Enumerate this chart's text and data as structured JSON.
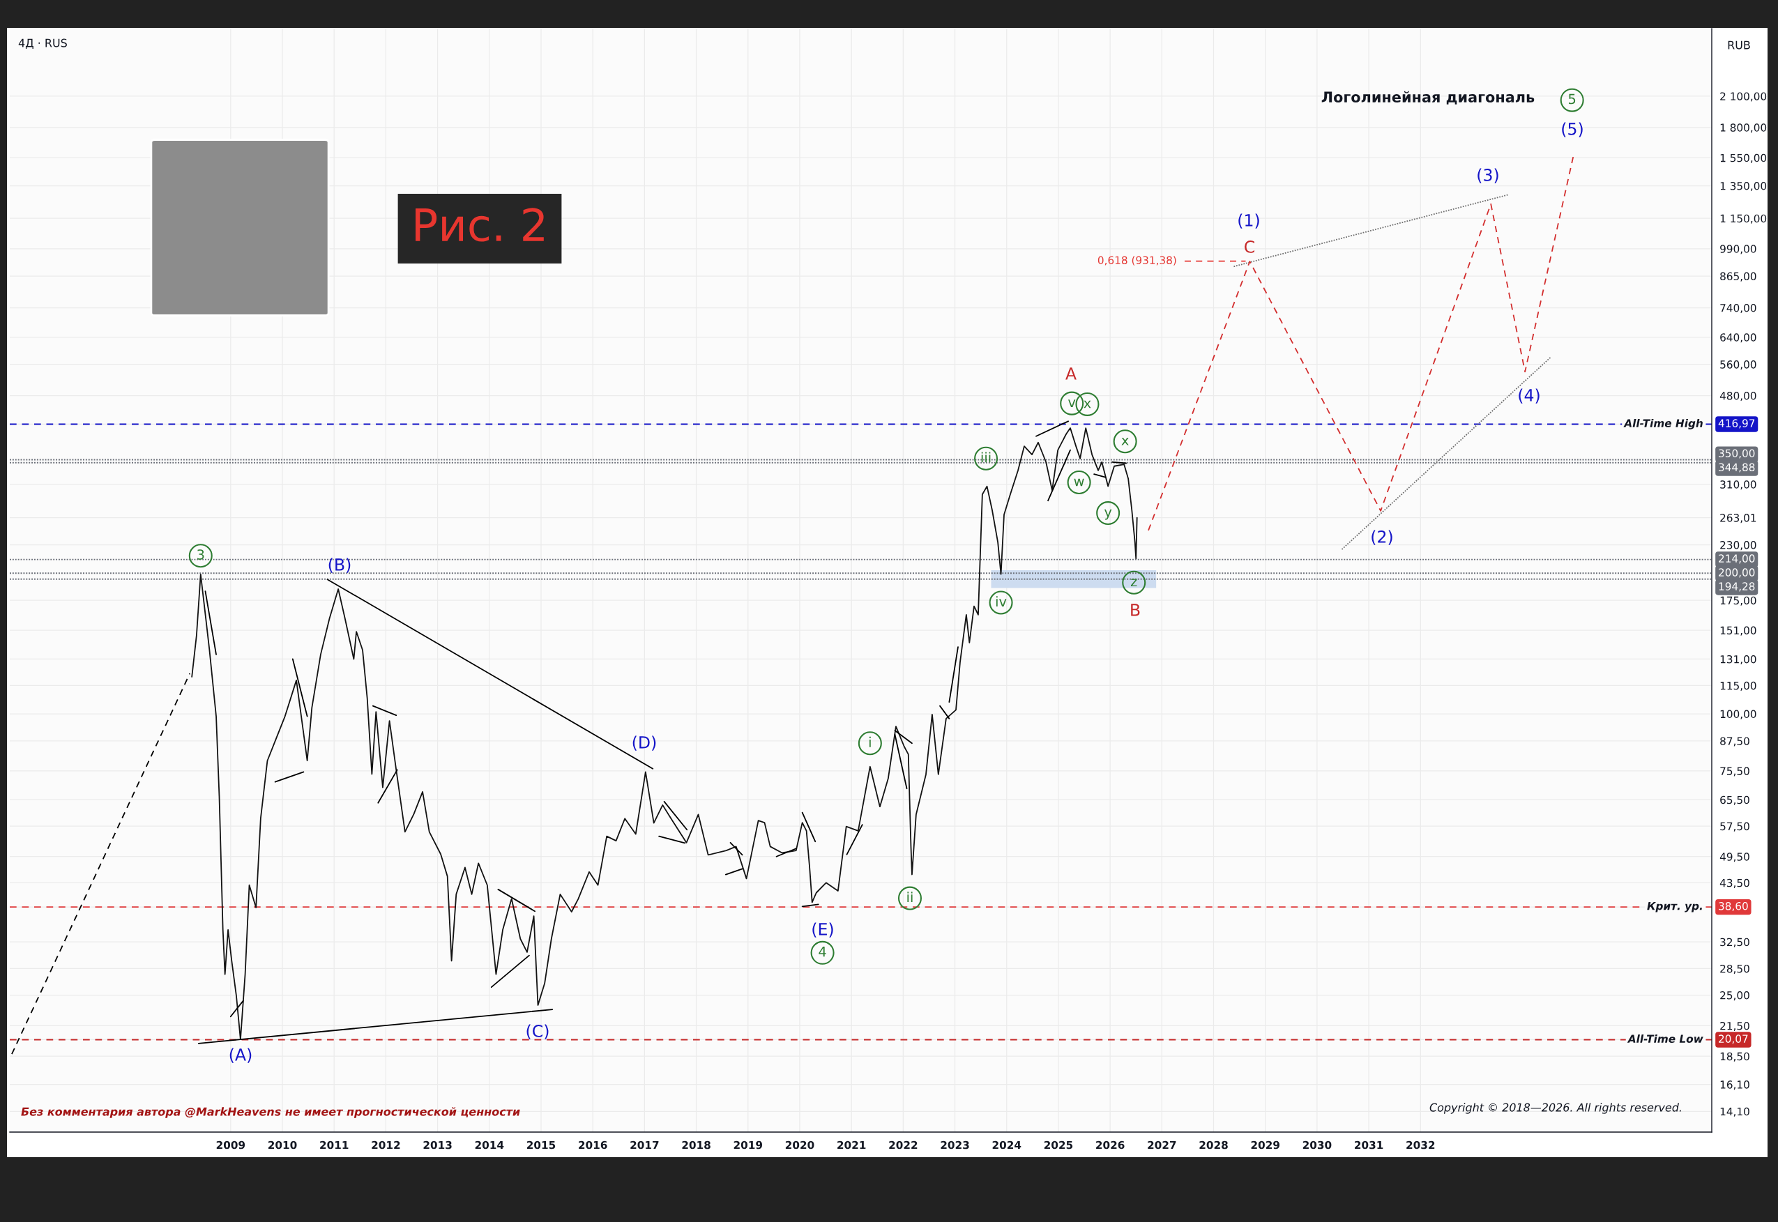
{
  "chart_data": {
    "type": "line",
    "subtitle": "4Д · RUS",
    "ylabel": "RUB",
    "log": "y",
    "grid": true,
    "xlim": [
      2004.73,
      2037.63
    ],
    "ylim": [
      12.73,
      2930
    ],
    "xticks": [
      2009,
      2010,
      2011,
      2012,
      2013,
      2014,
      2015,
      2016,
      2017,
      2018,
      2019,
      2020,
      2021,
      2022,
      2023,
      2024,
      2025,
      2026,
      2027,
      2028,
      2029,
      2030,
      2031,
      2032
    ],
    "yticks": [
      {
        "value": 2100,
        "label": "2 100,00"
      },
      {
        "value": 1800,
        "label": "1 800,00"
      },
      {
        "value": 1550,
        "label": "1 550,00"
      },
      {
        "value": 1350,
        "label": "1 350,00"
      },
      {
        "value": 1150,
        "label": "1 150,00"
      },
      {
        "value": 990,
        "label": "990,00"
      },
      {
        "value": 865,
        "label": "865,00"
      },
      {
        "value": 740,
        "label": "740,00"
      },
      {
        "value": 640,
        "label": "640,00"
      },
      {
        "value": 560,
        "label": "560,00"
      },
      {
        "value": 480,
        "label": "480,00"
      },
      {
        "value": 416.97,
        "label": "416,97"
      },
      {
        "value": 310,
        "label": "310,00"
      },
      {
        "value": 263.01,
        "label": "263,01"
      },
      {
        "value": 230,
        "label": "230,00"
      },
      {
        "value": 175,
        "label": "175,00"
      },
      {
        "value": 151,
        "label": "151,00"
      },
      {
        "value": 131,
        "label": "131,00"
      },
      {
        "value": 115,
        "label": "115,00"
      },
      {
        "value": 100,
        "label": "100,00"
      },
      {
        "value": 87.5,
        "label": "87,50"
      },
      {
        "value": 75.5,
        "label": "75,50"
      },
      {
        "value": 65.5,
        "label": "65,50"
      },
      {
        "value": 57.5,
        "label": "57,50"
      },
      {
        "value": 49.5,
        "label": "49,50"
      },
      {
        "value": 43.5,
        "label": "43,50"
      },
      {
        "value": 38.6,
        "label": "38,60"
      },
      {
        "value": 32.5,
        "label": "32,50"
      },
      {
        "value": 28.5,
        "label": "28,50"
      },
      {
        "value": 25,
        "label": "25,00"
      },
      {
        "value": 21.5,
        "label": "21,50"
      },
      {
        "value": 20.07,
        "label": "20,07"
      },
      {
        "value": 18.5,
        "label": "18,50"
      },
      {
        "value": 16.1,
        "label": "16,10"
      },
      {
        "value": 14.1,
        "label": "14,10"
      }
    ],
    "ref_lines": [
      {
        "axis": "y",
        "value": 416.97,
        "label": "All-Time High",
        "color": "#1414c8",
        "line_style": "dashed"
      },
      {
        "axis": "y",
        "value": 350,
        "label": "350,00",
        "color": "#6b6f78",
        "line_style": "dotted"
      },
      {
        "axis": "y",
        "value": 344.88,
        "label": "344,88",
        "color": "#6b6f78",
        "line_style": "dotted"
      },
      {
        "axis": "y",
        "value": 214,
        "label": "214,00",
        "color": "#6b6f78",
        "line_style": "dotted"
      },
      {
        "axis": "y",
        "value": 200,
        "label": "200,00",
        "color": "#6b6f78",
        "line_style": "dotted"
      },
      {
        "axis": "y",
        "value": 194.28,
        "label": "194,28",
        "color": "#6b6f78",
        "line_style": "dotted"
      },
      {
        "axis": "y",
        "value": 38.6,
        "label": "Крит. ур.",
        "color": "#e0393a",
        "line_style": "dashed"
      },
      {
        "axis": "y",
        "value": 20.07,
        "label": "All-Time Low",
        "color": "#c62828",
        "line_style": "dashed"
      }
    ],
    "annotations": [
      "Логолинейная диагональ",
      "Рис. 2",
      "Без комментария автора @MarkHeavens не имеет прогностической ценности",
      "Copyright © 2018—2026. All rights reserved.",
      "(A)",
      "(B)",
      "(C)",
      "(D)",
      "(E)",
      "(1)",
      "(2)",
      "(3)",
      "(4)",
      "(5)",
      "A",
      "B",
      "C",
      {
        "text": "0,618 (931,38)",
        "x": 2027.44,
        "y": 931.38
      },
      {
        "text": "3",
        "x": 2008.42,
        "y": 218
      },
      {
        "text": "4",
        "x": 2020.44,
        "y": 30.8
      },
      {
        "text": "i",
        "x": 2021.36,
        "y": 86.5
      },
      {
        "text": "ii",
        "x": 2022.13,
        "y": 40.3
      },
      {
        "text": "iii",
        "x": 2023.6,
        "y": 352
      },
      {
        "text": "iv",
        "x": 2023.89,
        "y": 173
      },
      {
        "text": "v",
        "x": 2025.26,
        "y": 462
      },
      {
        "text": "w",
        "x": 2025.4,
        "y": 313
      },
      {
        "text": "x",
        "x": 2025.56,
        "y": 460
      },
      {
        "text": "y",
        "x": 2025.96,
        "y": 269
      },
      {
        "text": "x",
        "x": 2026.29,
        "y": 383
      },
      {
        "text": "z",
        "x": 2026.46,
        "y": 191
      },
      {
        "text": "5",
        "x": 2034.93,
        "y": 2059
      }
    ],
    "series": [
      {
        "color": "#cddcf0",
        "x": [
          2023.7,
          2026.89
        ],
        "values": [
          null,
          null
        ],
        "lower": [
          186,
          186
        ],
        "upper": [
          203,
          203
        ]
      },
      {
        "color": "#131313",
        "x": [
          2008.25,
          2008.34,
          2008.42,
          2008.52,
          2008.59,
          2008.72,
          2008.78,
          2008.85,
          2008.89,
          2008.95,
          2009.02,
          2009.11,
          2009.19,
          2009.28,
          2009.36,
          2009.49,
          2009.58,
          2009.71,
          2009.88,
          2010.05,
          2010.27,
          2010.4,
          2010.48,
          2010.57,
          2010.74,
          2010.91,
          2011.08,
          2011.21,
          2011.38,
          2011.43,
          2011.55,
          2011.64,
          2011.73,
          2011.81,
          2011.94,
          2012.07,
          2012.2,
          2012.37,
          2012.54,
          2012.71,
          2012.84,
          2013.06,
          2013.19,
          2013.27,
          2013.36,
          2013.53,
          2013.66,
          2013.79,
          2013.96,
          2014.13,
          2014.26,
          2014.43,
          2014.6,
          2014.73,
          2014.86,
          2014.94,
          2015.07,
          2015.2,
          2015.37,
          2015.59,
          2015.72,
          2015.93,
          2016.1,
          2016.27,
          2016.45,
          2016.62,
          2016.83,
          2016.96,
          2017.02,
          2017.18,
          2017.35,
          2017.5,
          2017.81,
          2018.04,
          2018.23,
          2018.58,
          2018.77,
          2018.97,
          2019.2,
          2019.32,
          2019.43,
          2019.66,
          2019.93,
          2020.05,
          2020.13,
          2020.19,
          2020.24,
          2020.32,
          2020.51,
          2020.74,
          2020.9,
          2021.13,
          2021.36,
          2021.55,
          2021.71,
          2021.86,
          2022.02,
          2022.1,
          2022.15,
          2022.17,
          2022.25,
          2022.44,
          2022.56,
          2022.68,
          2022.83,
          2023.02,
          2023.1,
          2023.22,
          2023.28,
          2023.37,
          2023.45,
          2023.53,
          2023.62,
          2023.72,
          2023.83,
          2023.89,
          2023.95,
          2024.07,
          2024.22,
          2024.34,
          2024.49,
          2024.61,
          2024.76,
          2024.88,
          2024.99,
          2025.15,
          2025.23,
          2025.34,
          2025.42,
          2025.53,
          2025.65,
          2025.77,
          2025.84,
          2025.96,
          2026.08,
          2026.27,
          2026.35,
          2026.42,
          2026.48,
          2026.5,
          2026.52
        ],
        "values": [
          120,
          147,
          199,
          160,
          137,
          98.8,
          66.6,
          34.5,
          27.7,
          34.5,
          29.6,
          24.9,
          20.1,
          27.7,
          43.0,
          38.5,
          59.7,
          79.4,
          88.6,
          98.8,
          118,
          92.5,
          79.4,
          103,
          134,
          160,
          185,
          160,
          131,
          150,
          137,
          108,
          74.3,
          101,
          69.6,
          96.6,
          75.9,
          55.9,
          61.0,
          68.1,
          55.9,
          50.1,
          44.9,
          29.6,
          41.1,
          46.9,
          41.1,
          47.9,
          43.0,
          27.7,
          34.5,
          40.2,
          33.0,
          30.9,
          36.9,
          23.8,
          26.5,
          33.0,
          41.1,
          37.7,
          40.2,
          45.9,
          43.0,
          54.7,
          53.5,
          59.7,
          55.3,
          68.1,
          75.1,
          58.4,
          63.8,
          60.0,
          53.0,
          60.9,
          49.9,
          51.0,
          52.0,
          44.4,
          59.1,
          58.5,
          52.0,
          50.4,
          51.0,
          58.5,
          56.2,
          47.1,
          39.5,
          41.4,
          43.5,
          41.8,
          57.4,
          56.2,
          77.1,
          63.3,
          72.7,
          94.0,
          85.1,
          81.9,
          52.0,
          45.3,
          60.9,
          74.2,
          99.7,
          74.2,
          97.7,
          102,
          129,
          163,
          142,
          170,
          163,
          295,
          307,
          273,
          233,
          199,
          267,
          295,
          332,
          374,
          359,
          381,
          346,
          301,
          367,
          397,
          409,
          374,
          352,
          409,
          359,
          332,
          346,
          307,
          339,
          342,
          319,
          273,
          233,
          215,
          263
        ]
      },
      {
        "color": "#000000",
        "line_style": "dashed",
        "x": [
          2004.77,
          2008.21
        ],
        "values": [
          18.7,
          122
        ]
      },
      {
        "color": "#000000",
        "x": [
          2008.38,
          2015.22
        ],
        "values": [
          19.7,
          23.3
        ]
      },
      {
        "color": "#000000",
        "x": [
          2010.87,
          2017.16
        ],
        "values": [
          194,
          76.3
        ]
      },
      {
        "color": "#000000",
        "x": [
          2008.51,
          2008.72
        ],
        "values": [
          183,
          134
        ]
      },
      {
        "color": "#000000",
        "x": [
          2009.0,
          2009.24
        ],
        "values": [
          22.5,
          24.3
        ]
      },
      {
        "color": "#000000",
        "x": [
          2009.86,
          2010.41
        ],
        "values": [
          71.5,
          75.1
        ]
      },
      {
        "color": "#000000",
        "x": [
          2010.2,
          2010.48
        ],
        "values": [
          131,
          98.8
        ]
      },
      {
        "color": "#000000",
        "x": [
          2011.75,
          2012.2
        ],
        "values": [
          104,
          99.3
        ]
      },
      {
        "color": "#000000",
        "x": [
          2011.85,
          2012.22
        ],
        "values": [
          64.5,
          75.9
        ]
      },
      {
        "color": "#000000",
        "x": [
          2014.17,
          2014.88
        ],
        "values": [
          42.1,
          37.8
        ]
      },
      {
        "color": "#000000",
        "x": [
          2014.04,
          2014.77
        ],
        "values": [
          26.0,
          30.4
        ]
      },
      {
        "color": "#000000",
        "x": [
          2017.38,
          2017.82
        ],
        "values": [
          64.9,
          56.5
        ]
      },
      {
        "color": "#000000",
        "x": [
          2017.28,
          2017.78
        ],
        "values": [
          54.7,
          52.9
        ]
      },
      {
        "color": "#000000",
        "x": [
          2018.66,
          2018.89
        ],
        "values": [
          53.0,
          49.9
        ]
      },
      {
        "color": "#000000",
        "x": [
          2018.57,
          2018.89
        ],
        "values": [
          45.3,
          46.6
        ]
      },
      {
        "color": "#000000",
        "x": [
          2019.55,
          2019.93
        ],
        "values": [
          49.5,
          51.5
        ]
      },
      {
        "color": "#000000",
        "x": [
          2020.05,
          2020.3
        ],
        "values": [
          61.5,
          53.3
        ]
      },
      {
        "color": "#000000",
        "x": [
          2020.05,
          2020.36
        ],
        "values": [
          38.7,
          39.1
        ]
      },
      {
        "color": "#000000",
        "x": [
          2020.91,
          2021.21
        ],
        "values": [
          50.0,
          57.9
        ]
      },
      {
        "color": "#000000",
        "x": [
          2021.84,
          2022.17
        ],
        "values": [
          92.1,
          86.5
        ]
      },
      {
        "color": "#000000",
        "x": [
          2021.84,
          2022.07
        ],
        "values": [
          90.3,
          69.2
        ]
      },
      {
        "color": "#000000",
        "x": [
          2022.71,
          2022.89
        ],
        "values": [
          104,
          97.7
        ]
      },
      {
        "color": "#000000",
        "x": [
          2022.89,
          2023.06
        ],
        "values": [
          106,
          139
        ]
      },
      {
        "color": "#000000",
        "x": [
          2024.57,
          2025.19
        ],
        "values": [
          393,
          423
        ]
      },
      {
        "color": "#000000",
        "x": [
          2024.8,
          2025.23
        ],
        "values": [
          286,
          367
        ]
      },
      {
        "color": "#000000",
        "x": [
          2025.69,
          2025.91
        ],
        "values": [
          326,
          321
        ]
      },
      {
        "color": "#000000",
        "x": [
          2026.04,
          2026.31
        ],
        "values": [
          346,
          344
        ]
      },
      {
        "color": "#707070",
        "line_style": "dotted",
        "x": [
          2028.39,
          2033.71
        ],
        "values": [
          907,
          1293
        ]
      },
      {
        "color": "#707070",
        "line_style": "dotted",
        "x": [
          2030.48,
          2034.51
        ],
        "values": [
          225,
          579
        ]
      },
      {
        "color": "#e53935",
        "line_style": "dashed",
        "x": [
          2027.44,
          2028.62
        ],
        "values": [
          931.38,
          931.38
        ]
      },
      {
        "color": "#d32f2f",
        "line_style": "dashed",
        "x": [
          2026.74,
          2028.7,
          2031.23,
          2033.36,
          2034.02,
          2034.96
        ],
        "values": [
          247,
          930,
          272,
          1234,
          540,
          1572
        ]
      },
      {
        "type": "scatter",
        "color": "#2e7d32",
        "marker": "circle",
        "x": [
          2008.42,
          2020.44,
          2021.36,
          2022.13,
          2023.6,
          2023.89,
          2025.26,
          2025.4,
          2025.56,
          2025.96,
          2026.29,
          2026.46,
          2034.93
        ],
        "values": [
          218,
          30.8,
          86.5,
          40.3,
          352,
          173,
          462,
          313,
          460,
          269,
          383,
          191,
          2059
        ]
      }
    ]
  }
}
